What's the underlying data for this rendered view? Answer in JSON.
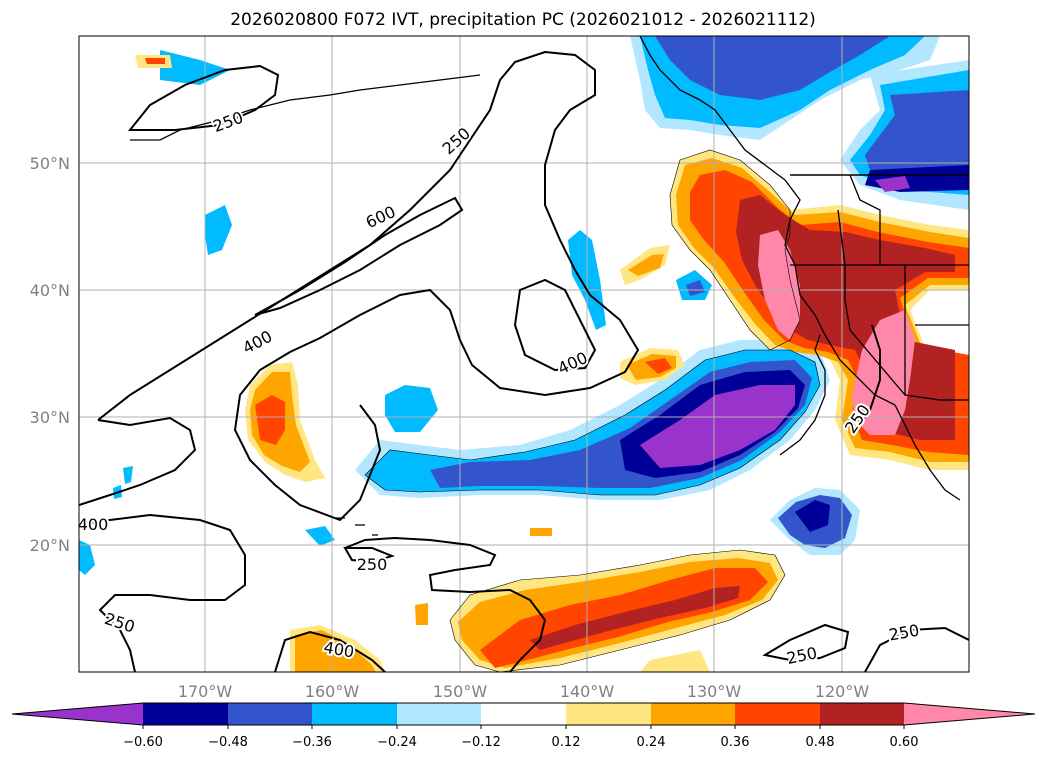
{
  "title": "2026020800 F072 IVT, precipitation PC (2026021012 - 2026021112)",
  "map": {
    "lon_labels": [
      "170°W",
      "160°W",
      "150°W",
      "140°W",
      "130°W",
      "120°W"
    ],
    "lat_labels": [
      "50°N",
      "40°N",
      "30°N",
      "20°N"
    ],
    "contour_labels": [
      "250",
      "250",
      "600",
      "400",
      "400",
      "400",
      "250",
      "250",
      "250",
      "400",
      "250",
      "250"
    ]
  },
  "colorbar": {
    "ticks": [
      "−0.60",
      "−0.48",
      "−0.36",
      "−0.24",
      "−0.12",
      "0.12",
      "0.24",
      "0.36",
      "0.48",
      "0.60"
    ],
    "colors": [
      "#9933cc",
      "#000099",
      "#3355cc",
      "#00bbff",
      "#b3e6ff",
      "#ffffff",
      "#ffe680",
      "#ffa500",
      "#ff4500",
      "#b22222",
      "#ff88aa"
    ]
  }
}
